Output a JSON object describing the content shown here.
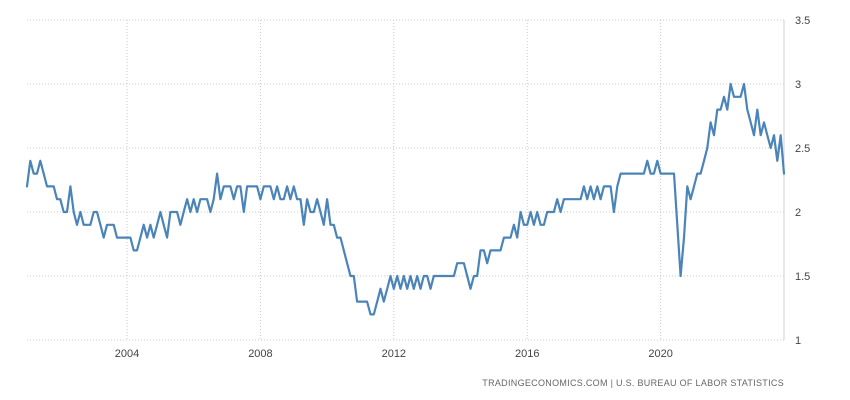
{
  "chart_data": {
    "type": "line",
    "title": "",
    "xlabel": "",
    "ylabel": "",
    "xlim": [
      2001.0,
      2023.7
    ],
    "ylim": [
      1,
      3.5
    ],
    "x_ticks": [
      {
        "value": 2004,
        "label": "2004"
      },
      {
        "value": 2008,
        "label": "2008"
      },
      {
        "value": 2012,
        "label": "2012"
      },
      {
        "value": 2016,
        "label": "2016"
      },
      {
        "value": 2020,
        "label": "2020"
      }
    ],
    "y_ticks": [
      {
        "value": 1,
        "label": "1"
      },
      {
        "value": 1.5,
        "label": "1.5"
      },
      {
        "value": 2,
        "label": "2"
      },
      {
        "value": 2.5,
        "label": "2.5"
      },
      {
        "value": 3,
        "label": "3"
      },
      {
        "value": 3.5,
        "label": "3.5"
      }
    ],
    "grid": true,
    "y_axis_side": "right",
    "series": [
      {
        "color": "#4a84b8",
        "points": [
          [
            2001.0,
            2.2
          ],
          [
            2001.1,
            2.4
          ],
          [
            2001.2,
            2.3
          ],
          [
            2001.3,
            2.3
          ],
          [
            2001.4,
            2.4
          ],
          [
            2001.5,
            2.3
          ],
          [
            2001.6,
            2.2
          ],
          [
            2001.8,
            2.2
          ],
          [
            2001.9,
            2.1
          ],
          [
            2002.0,
            2.1
          ],
          [
            2002.1,
            2.0
          ],
          [
            2002.2,
            2.0
          ],
          [
            2002.3,
            2.2
          ],
          [
            2002.4,
            2.0
          ],
          [
            2002.5,
            1.9
          ],
          [
            2002.6,
            2.0
          ],
          [
            2002.7,
            1.9
          ],
          [
            2002.9,
            1.9
          ],
          [
            2003.0,
            2.0
          ],
          [
            2003.1,
            2.0
          ],
          [
            2003.2,
            1.9
          ],
          [
            2003.3,
            1.8
          ],
          [
            2003.4,
            1.9
          ],
          [
            2003.5,
            1.9
          ],
          [
            2003.6,
            1.9
          ],
          [
            2003.7,
            1.8
          ],
          [
            2003.8,
            1.8
          ],
          [
            2003.9,
            1.8
          ],
          [
            2004.0,
            1.8
          ],
          [
            2004.1,
            1.8
          ],
          [
            2004.2,
            1.7
          ],
          [
            2004.3,
            1.7
          ],
          [
            2004.4,
            1.8
          ],
          [
            2004.5,
            1.9
          ],
          [
            2004.6,
            1.8
          ],
          [
            2004.7,
            1.9
          ],
          [
            2004.8,
            1.8
          ],
          [
            2004.9,
            1.9
          ],
          [
            2005.0,
            2.0
          ],
          [
            2005.1,
            1.9
          ],
          [
            2005.2,
            1.8
          ],
          [
            2005.3,
            2.0
          ],
          [
            2005.4,
            2.0
          ],
          [
            2005.5,
            2.0
          ],
          [
            2005.6,
            1.9
          ],
          [
            2005.7,
            2.0
          ],
          [
            2005.8,
            2.1
          ],
          [
            2005.9,
            2.0
          ],
          [
            2006.0,
            2.1
          ],
          [
            2006.1,
            2.0
          ],
          [
            2006.2,
            2.1
          ],
          [
            2006.3,
            2.1
          ],
          [
            2006.4,
            2.1
          ],
          [
            2006.5,
            2.0
          ],
          [
            2006.6,
            2.1
          ],
          [
            2006.7,
            2.3
          ],
          [
            2006.8,
            2.1
          ],
          [
            2006.9,
            2.2
          ],
          [
            2007.0,
            2.2
          ],
          [
            2007.1,
            2.2
          ],
          [
            2007.2,
            2.1
          ],
          [
            2007.3,
            2.2
          ],
          [
            2007.4,
            2.2
          ],
          [
            2007.5,
            2.0
          ],
          [
            2007.6,
            2.2
          ],
          [
            2007.7,
            2.2
          ],
          [
            2007.8,
            2.2
          ],
          [
            2007.9,
            2.2
          ],
          [
            2008.0,
            2.1
          ],
          [
            2008.1,
            2.2
          ],
          [
            2008.2,
            2.2
          ],
          [
            2008.3,
            2.2
          ],
          [
            2008.4,
            2.1
          ],
          [
            2008.5,
            2.2
          ],
          [
            2008.6,
            2.1
          ],
          [
            2008.7,
            2.1
          ],
          [
            2008.8,
            2.2
          ],
          [
            2008.9,
            2.1
          ],
          [
            2009.0,
            2.2
          ],
          [
            2009.1,
            2.1
          ],
          [
            2009.2,
            2.1
          ],
          [
            2009.3,
            1.9
          ],
          [
            2009.4,
            2.1
          ],
          [
            2009.5,
            2.0
          ],
          [
            2009.6,
            2.0
          ],
          [
            2009.7,
            2.1
          ],
          [
            2009.8,
            2.0
          ],
          [
            2009.9,
            1.9
          ],
          [
            2010.0,
            2.1
          ],
          [
            2010.1,
            1.9
          ],
          [
            2010.2,
            1.9
          ],
          [
            2010.3,
            1.8
          ],
          [
            2010.4,
            1.8
          ],
          [
            2010.5,
            1.7
          ],
          [
            2010.6,
            1.6
          ],
          [
            2010.7,
            1.5
          ],
          [
            2010.8,
            1.5
          ],
          [
            2010.9,
            1.3
          ],
          [
            2011.0,
            1.3
          ],
          [
            2011.1,
            1.3
          ],
          [
            2011.2,
            1.3
          ],
          [
            2011.3,
            1.2
          ],
          [
            2011.4,
            1.2
          ],
          [
            2011.5,
            1.3
          ],
          [
            2011.6,
            1.4
          ],
          [
            2011.7,
            1.3
          ],
          [
            2011.8,
            1.4
          ],
          [
            2011.9,
            1.5
          ],
          [
            2012.0,
            1.4
          ],
          [
            2012.1,
            1.5
          ],
          [
            2012.2,
            1.4
          ],
          [
            2012.3,
            1.5
          ],
          [
            2012.4,
            1.4
          ],
          [
            2012.5,
            1.5
          ],
          [
            2012.6,
            1.4
          ],
          [
            2012.7,
            1.5
          ],
          [
            2012.8,
            1.4
          ],
          [
            2012.9,
            1.5
          ],
          [
            2013.0,
            1.5
          ],
          [
            2013.1,
            1.4
          ],
          [
            2013.2,
            1.5
          ],
          [
            2013.3,
            1.5
          ],
          [
            2013.4,
            1.5
          ],
          [
            2013.5,
            1.5
          ],
          [
            2013.6,
            1.5
          ],
          [
            2013.7,
            1.5
          ],
          [
            2013.8,
            1.5
          ],
          [
            2013.9,
            1.6
          ],
          [
            2014.0,
            1.6
          ],
          [
            2014.1,
            1.6
          ],
          [
            2014.2,
            1.5
          ],
          [
            2014.3,
            1.4
          ],
          [
            2014.4,
            1.5
          ],
          [
            2014.5,
            1.5
          ],
          [
            2014.6,
            1.7
          ],
          [
            2014.7,
            1.7
          ],
          [
            2014.8,
            1.6
          ],
          [
            2014.9,
            1.7
          ],
          [
            2015.0,
            1.7
          ],
          [
            2015.1,
            1.7
          ],
          [
            2015.2,
            1.7
          ],
          [
            2015.3,
            1.8
          ],
          [
            2015.4,
            1.8
          ],
          [
            2015.5,
            1.8
          ],
          [
            2015.6,
            1.9
          ],
          [
            2015.7,
            1.8
          ],
          [
            2015.8,
            2.0
          ],
          [
            2015.9,
            1.9
          ],
          [
            2016.0,
            1.9
          ],
          [
            2016.1,
            2.0
          ],
          [
            2016.2,
            1.9
          ],
          [
            2016.3,
            2.0
          ],
          [
            2016.4,
            1.9
          ],
          [
            2016.5,
            1.9
          ],
          [
            2016.6,
            2.0
          ],
          [
            2016.7,
            2.0
          ],
          [
            2016.8,
            2.0
          ],
          [
            2016.9,
            2.1
          ],
          [
            2017.0,
            2.0
          ],
          [
            2017.1,
            2.1
          ],
          [
            2017.2,
            2.1
          ],
          [
            2017.3,
            2.1
          ],
          [
            2017.4,
            2.1
          ],
          [
            2017.5,
            2.1
          ],
          [
            2017.6,
            2.1
          ],
          [
            2017.7,
            2.2
          ],
          [
            2017.8,
            2.1
          ],
          [
            2017.9,
            2.2
          ],
          [
            2018.0,
            2.1
          ],
          [
            2018.1,
            2.2
          ],
          [
            2018.2,
            2.1
          ],
          [
            2018.3,
            2.2
          ],
          [
            2018.4,
            2.2
          ],
          [
            2018.5,
            2.2
          ],
          [
            2018.6,
            2.0
          ],
          [
            2018.7,
            2.2
          ],
          [
            2018.8,
            2.3
          ],
          [
            2018.9,
            2.3
          ],
          [
            2019.0,
            2.3
          ],
          [
            2019.1,
            2.3
          ],
          [
            2019.2,
            2.3
          ],
          [
            2019.3,
            2.3
          ],
          [
            2019.4,
            2.3
          ],
          [
            2019.5,
            2.3
          ],
          [
            2019.6,
            2.4
          ],
          [
            2019.7,
            2.3
          ],
          [
            2019.8,
            2.3
          ],
          [
            2019.9,
            2.4
          ],
          [
            2020.0,
            2.3
          ],
          [
            2020.1,
            2.3
          ],
          [
            2020.2,
            2.3
          ],
          [
            2020.3,
            2.3
          ],
          [
            2020.4,
            2.3
          ],
          [
            2020.5,
            1.9
          ],
          [
            2020.6,
            1.5
          ],
          [
            2020.7,
            1.8
          ],
          [
            2020.8,
            2.2
          ],
          [
            2020.9,
            2.1
          ],
          [
            2021.0,
            2.2
          ],
          [
            2021.1,
            2.3
          ],
          [
            2021.2,
            2.3
          ],
          [
            2021.3,
            2.4
          ],
          [
            2021.4,
            2.5
          ],
          [
            2021.5,
            2.7
          ],
          [
            2021.6,
            2.6
          ],
          [
            2021.7,
            2.8
          ],
          [
            2021.8,
            2.8
          ],
          [
            2021.9,
            2.9
          ],
          [
            2022.0,
            2.8
          ],
          [
            2022.1,
            3.0
          ],
          [
            2022.2,
            2.9
          ],
          [
            2022.3,
            2.9
          ],
          [
            2022.4,
            2.9
          ],
          [
            2022.5,
            3.0
          ],
          [
            2022.6,
            2.8
          ],
          [
            2022.7,
            2.7
          ],
          [
            2022.8,
            2.6
          ],
          [
            2022.9,
            2.8
          ],
          [
            2023.0,
            2.6
          ],
          [
            2023.1,
            2.7
          ],
          [
            2023.2,
            2.6
          ],
          [
            2023.3,
            2.5
          ],
          [
            2023.4,
            2.6
          ],
          [
            2023.5,
            2.4
          ],
          [
            2023.6,
            2.6
          ],
          [
            2023.7,
            2.3
          ]
        ]
      }
    ]
  },
  "source": {
    "text": "TRADINGECONOMICS.COM  |  U.S. BUREAU OF LABOR STATISTICS"
  }
}
